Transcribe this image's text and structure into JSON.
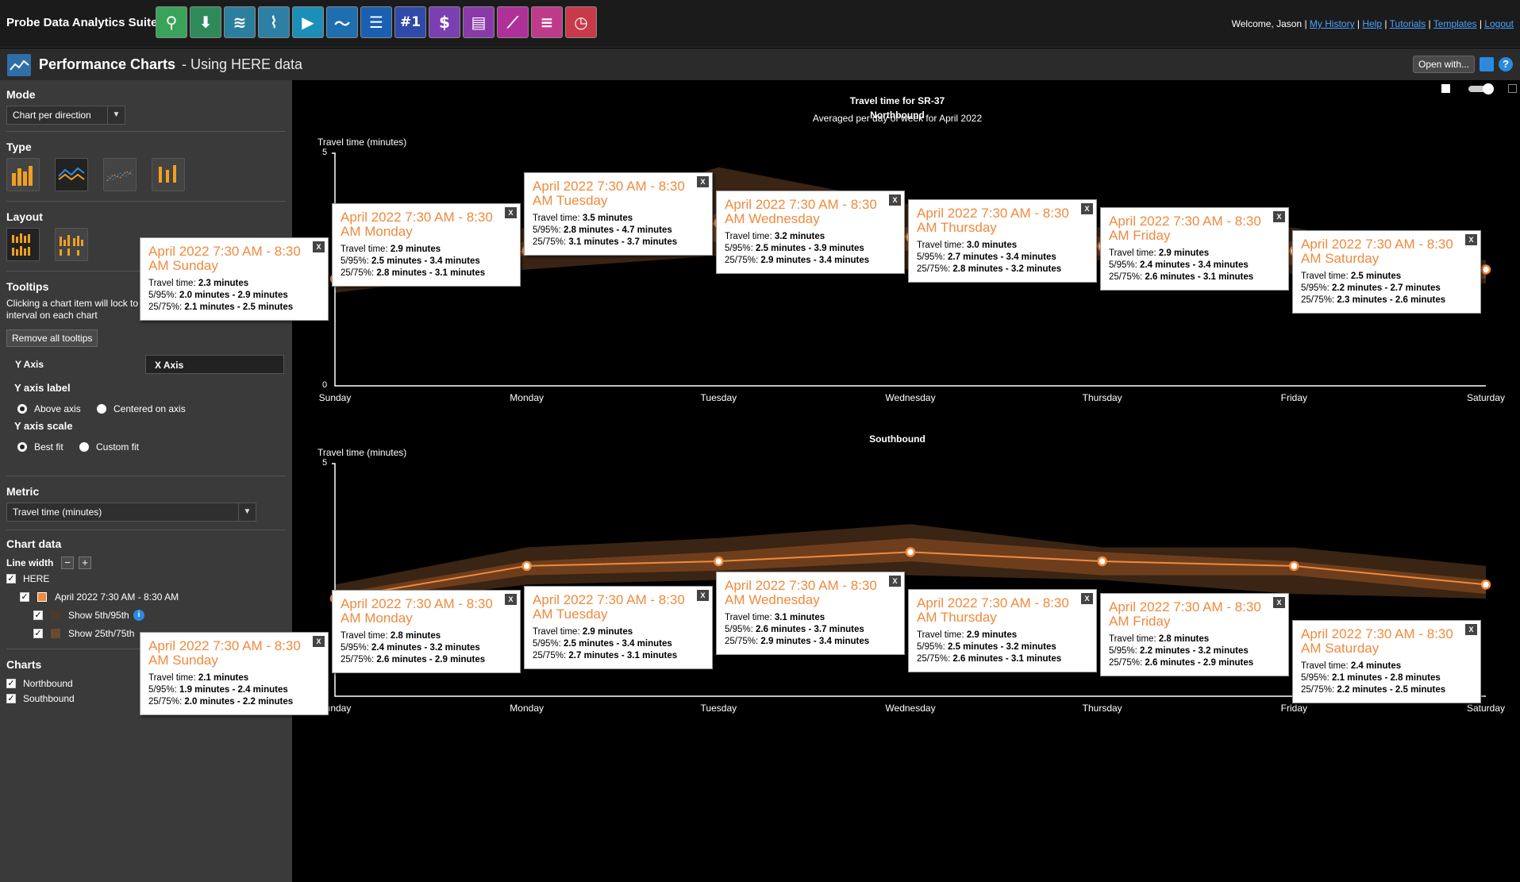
{
  "app": {
    "name": "Probe Data Analytics Suite",
    "toolbar": [
      {
        "icon": "magnifier-icon",
        "glyph": "⚲",
        "bg": "#3aa35a"
      },
      {
        "icon": "download-icon",
        "glyph": "⬇",
        "bg": "#2f8a5a"
      },
      {
        "icon": "map-icon",
        "glyph": "≋",
        "bg": "#2a7f9e"
      },
      {
        "icon": "route-icon",
        "glyph": "⌇",
        "bg": "#2d7fa6"
      },
      {
        "icon": "playback-icon",
        "glyph": "▶",
        "bg": "#1c8fb8"
      },
      {
        "icon": "trend-icon",
        "glyph": "〜",
        "bg": "#1f6fb0"
      },
      {
        "icon": "list-icon",
        "glyph": "☰",
        "bg": "#1a5fb0"
      },
      {
        "icon": "rank-icon",
        "glyph": "#1",
        "bg": "#2f4aa8"
      },
      {
        "icon": "cost-icon",
        "glyph": "$",
        "bg": "#7a3fb0"
      },
      {
        "icon": "report-icon",
        "glyph": "▤",
        "bg": "#8a3aa8"
      },
      {
        "icon": "scatter-icon",
        "glyph": "⟋",
        "bg": "#b0309a"
      },
      {
        "icon": "gantt-icon",
        "glyph": "≡",
        "bg": "#c03a8a"
      },
      {
        "icon": "clock-icon",
        "glyph": "◷",
        "bg": "#c83a4a"
      }
    ],
    "user": {
      "welcome": "Welcome, Jason",
      "links": [
        "My History",
        "Help",
        "Tutorials",
        "Templates",
        "Logout"
      ]
    }
  },
  "header": {
    "title": "Performance Charts",
    "subtitle": "- Using HERE data",
    "open_with": "Open with..."
  },
  "sidebar": {
    "mode_label": "Mode",
    "mode_value": "Chart per direction",
    "type_label": "Type",
    "layout_label": "Layout",
    "tooltips_label": "Tooltips",
    "tooltips_desc_1": "Clicking a chart item will lock to",
    "tooltips_desc_2": "interval on each chart",
    "remove_tooltips": "Remove all tooltips",
    "tab_y": "Y Axis",
    "tab_x": "X Axis",
    "y_axis_label_heading": "Y axis label",
    "above_axis": "Above axis",
    "centered_on_axis": "Centered on axis",
    "y_axis_scale_heading": "Y axis scale",
    "best_fit": "Best fit",
    "custom_fit": "Custom fit",
    "metric_label": "Metric",
    "metric_value": "Travel time (minutes)",
    "chart_data_label": "Chart data",
    "line_width_label": "Line width",
    "here_label": "HERE",
    "period_label": "April 2022 7:30 AM - 8:30 AM",
    "show_5_95": "Show 5th/95th",
    "show_25_75": "Show 25th/75th",
    "charts_label": "Charts",
    "northbound": "Northbound",
    "southbound": "Southbound",
    "accent": "#f08a3e"
  },
  "chart_header": {
    "title": "Travel time for SR-37",
    "subtitle": "Averaged per day of week for April 2022"
  },
  "tooltip_labels": {
    "tt": "Travel time: ",
    "p595": "5/95%: ",
    "p2575": "25/75%: ",
    "close": "X"
  },
  "chart_data": [
    {
      "type": "line",
      "title": "Northbound",
      "ylabel": "Travel time (minutes)",
      "ylim": [
        0,
        5
      ],
      "yticks": [
        "0",
        "5"
      ],
      "categories": [
        "Sunday",
        "Monday",
        "Tuesday",
        "Wednesday",
        "Thursday",
        "Friday",
        "Saturday"
      ],
      "values": [
        2.3,
        2.9,
        3.5,
        3.2,
        3.0,
        2.9,
        2.5
      ],
      "p5": [
        2.0,
        2.5,
        2.8,
        2.5,
        2.7,
        2.4,
        2.2
      ],
      "p95": [
        2.9,
        3.4,
        4.7,
        3.9,
        3.4,
        3.4,
        2.7
      ],
      "p25": [
        2.1,
        2.8,
        3.1,
        2.9,
        2.8,
        2.6,
        2.3
      ],
      "p75": [
        2.5,
        3.1,
        3.7,
        3.4,
        3.2,
        3.1,
        2.6
      ],
      "tooltips": [
        {
          "title": "April 2022 7:30 AM - 8:30 AM Sunday",
          "tt": "2.3 minutes",
          "p595": "2.0 minutes - 2.9 minutes",
          "p2575": "2.1 minutes - 2.5 minutes"
        },
        {
          "title": "April 2022 7:30 AM - 8:30 AM Monday",
          "tt": "2.9 minutes",
          "p595": "2.5 minutes - 3.4 minutes",
          "p2575": "2.8 minutes - 3.1 minutes"
        },
        {
          "title": "April 2022 7:30 AM - 8:30 AM Tuesday",
          "tt": "3.5 minutes",
          "p595": "2.8 minutes - 4.7 minutes",
          "p2575": "3.1 minutes - 3.7 minutes"
        },
        {
          "title": "April 2022 7:30 AM - 8:30 AM Wednesday",
          "tt": "3.2 minutes",
          "p595": "2.5 minutes - 3.9 minutes",
          "p2575": "2.9 minutes - 3.4 minutes"
        },
        {
          "title": "April 2022 7:30 AM - 8:30 AM Thursday",
          "tt": "3.0 minutes",
          "p595": "2.7 minutes - 3.4 minutes",
          "p2575": "2.8 minutes - 3.2 minutes"
        },
        {
          "title": "April 2022 7:30 AM - 8:30 AM Friday",
          "tt": "2.9 minutes",
          "p595": "2.4 minutes - 3.4 minutes",
          "p2575": "2.6 minutes - 3.1 minutes"
        },
        {
          "title": "April 2022 7:30 AM - 8:30 AM Saturday",
          "tt": "2.5 minutes",
          "p595": "2.2 minutes - 2.7 minutes",
          "p2575": "2.3 minutes - 2.6 minutes"
        }
      ]
    },
    {
      "type": "line",
      "title": "Southbound",
      "ylabel": "Travel time (minutes)",
      "ylim": [
        0,
        5
      ],
      "yticks": [
        "0",
        "5"
      ],
      "categories": [
        "Sunday",
        "Monday",
        "Tuesday",
        "Wednesday",
        "Thursday",
        "Friday",
        "Saturday"
      ],
      "values": [
        2.1,
        2.8,
        2.9,
        3.1,
        2.9,
        2.8,
        2.4
      ],
      "p5": [
        1.9,
        2.4,
        2.5,
        2.6,
        2.5,
        2.2,
        2.1
      ],
      "p95": [
        2.4,
        3.2,
        3.4,
        3.7,
        3.2,
        3.2,
        2.8
      ],
      "p25": [
        2.0,
        2.6,
        2.7,
        2.9,
        2.6,
        2.6,
        2.2
      ],
      "p75": [
        2.2,
        2.9,
        3.1,
        3.4,
        3.1,
        2.9,
        2.5
      ],
      "tooltips": [
        {
          "title": "April 2022 7:30 AM - 8:30 AM Sunday",
          "tt": "2.1 minutes",
          "p595": "1.9 minutes - 2.4 minutes",
          "p2575": "2.0 minutes - 2.2 minutes"
        },
        {
          "title": "April 2022 7:30 AM - 8:30 AM Monday",
          "tt": "2.8 minutes",
          "p595": "2.4 minutes - 3.2 minutes",
          "p2575": "2.6 minutes - 2.9 minutes"
        },
        {
          "title": "April 2022 7:30 AM - 8:30 AM Tuesday",
          "tt": "2.9 minutes",
          "p595": "2.5 minutes - 3.4 minutes",
          "p2575": "2.7 minutes - 3.1 minutes"
        },
        {
          "title": "April 2022 7:30 AM - 8:30 AM Wednesday",
          "tt": "3.1 minutes",
          "p595": "2.6 minutes - 3.7 minutes",
          "p2575": "2.9 minutes - 3.4 minutes"
        },
        {
          "title": "April 2022 7:30 AM - 8:30 AM Thursday",
          "tt": "2.9 minutes",
          "p595": "2.5 minutes - 3.2 minutes",
          "p2575": "2.6 minutes - 3.1 minutes"
        },
        {
          "title": "April 2022 7:30 AM - 8:30 AM Friday",
          "tt": "2.8 minutes",
          "p595": "2.2 minutes - 3.2 minutes",
          "p2575": "2.6 minutes - 2.9 minutes"
        },
        {
          "title": "April 2022 7:30 AM - 8:30 AM Saturday",
          "tt": "2.4 minutes",
          "p595": "2.1 minutes - 2.8 minutes",
          "p2575": "2.2 minutes - 2.5 minutes"
        }
      ]
    }
  ]
}
